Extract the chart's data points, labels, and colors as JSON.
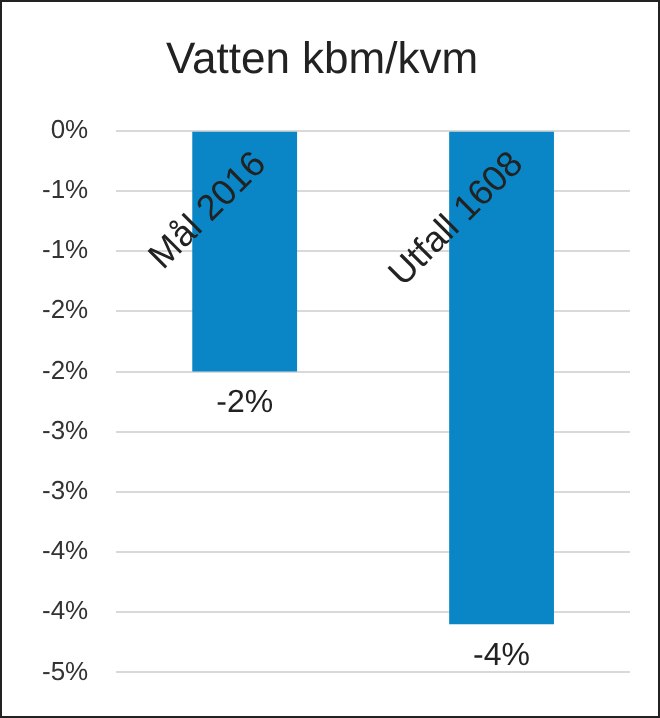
{
  "chart_data": {
    "type": "bar",
    "title": "Vatten kbm/kvm",
    "categories": [
      "Mål 2016",
      "Utfall 1608"
    ],
    "values": [
      -2.0,
      -4.1
    ],
    "color": "#0a86c6",
    "value_labels": [
      "-2%",
      "-4%"
    ],
    "ylim": [
      -4.5,
      0
    ],
    "yticks": [
      {
        "value": 0,
        "label": "0%"
      },
      {
        "value": -0.5,
        "label": "-1%"
      },
      {
        "value": -1,
        "label": "-1%"
      },
      {
        "value": -1.5,
        "label": "-2%"
      },
      {
        "value": -2,
        "label": "-2%"
      },
      {
        "value": -2.5,
        "label": "-3%"
      },
      {
        "value": -3,
        "label": "-3%"
      },
      {
        "value": -3.5,
        "label": "-4%"
      },
      {
        "value": -4,
        "label": "-4%"
      },
      {
        "value": -4.5,
        "label": "-5%"
      }
    ],
    "grid": "y"
  }
}
